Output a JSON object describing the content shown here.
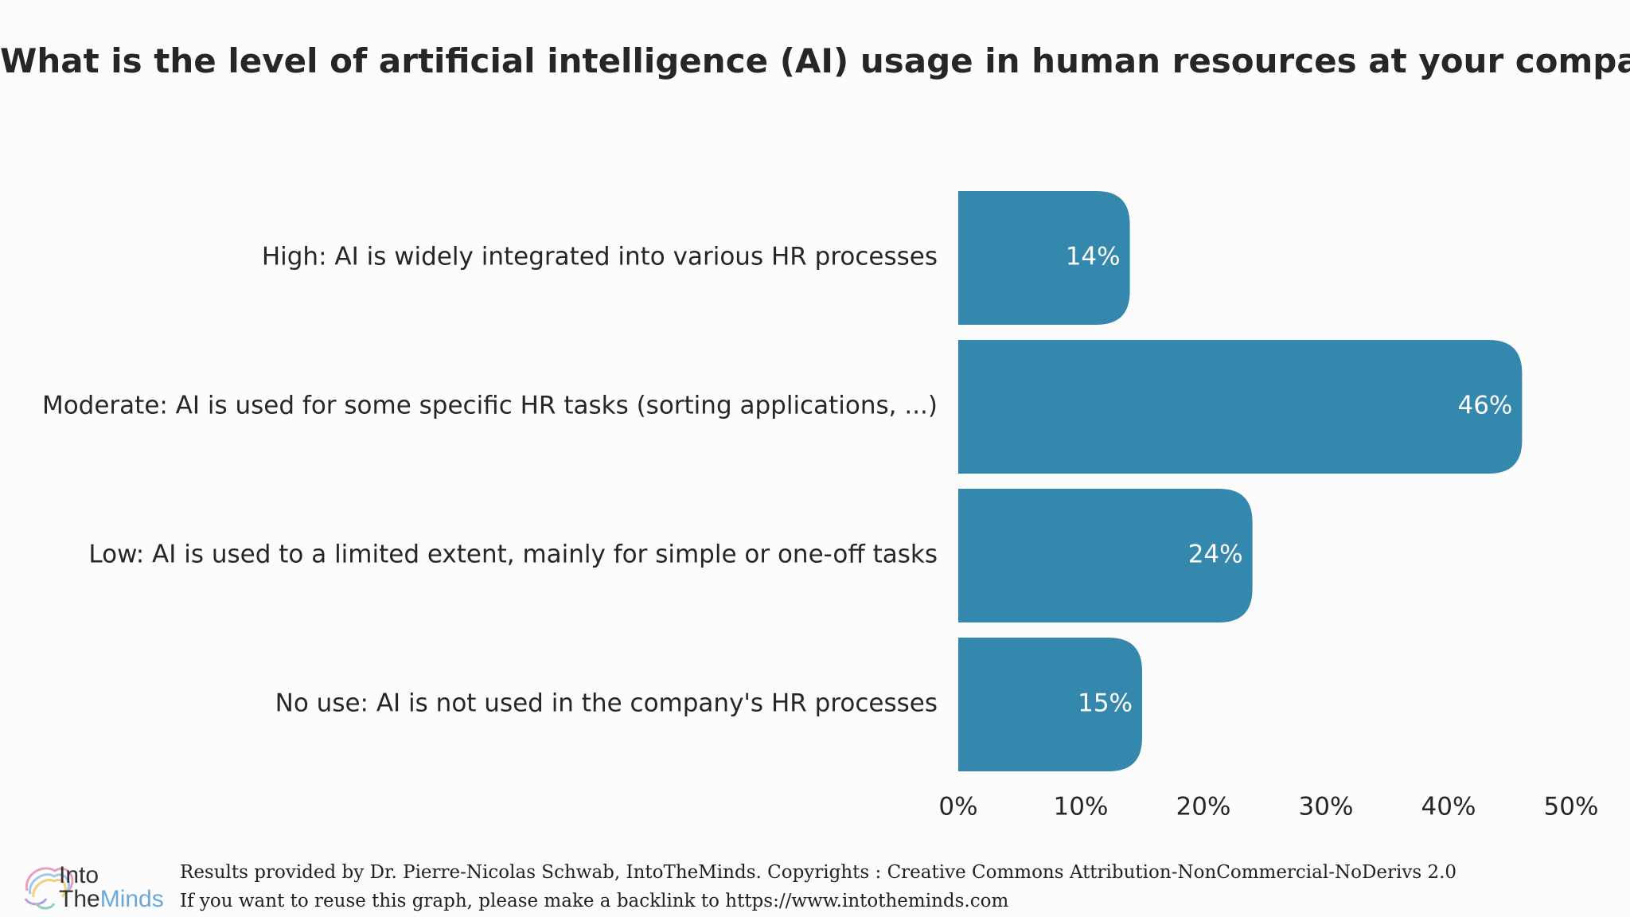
{
  "chart_data": {
    "type": "bar",
    "orientation": "horizontal",
    "title": "What is the level of artificial intelligence (AI) usage in human resources at your company?",
    "categories": [
      "High: AI is widely integrated into various HR processes",
      "Moderate: AI is used for some specific HR tasks (sorting applications, ...)",
      "Low: AI is used to a limited extent, mainly for simple or one-off tasks",
      "No use: AI is not used in the company's HR processes"
    ],
    "values": [
      14,
      46,
      24,
      15
    ],
    "value_labels": [
      "14%",
      "46%",
      "24%",
      "15%"
    ],
    "xlim": [
      0,
      50
    ],
    "x_ticks": [
      0,
      10,
      20,
      30,
      40,
      50
    ],
    "x_tick_labels": [
      "0%",
      "10%",
      "20%",
      "30%",
      "40%",
      "50%"
    ],
    "xlabel": "",
    "ylabel": "",
    "grid": false,
    "legend": "none",
    "bar_color": "#3588ad"
  },
  "footer": {
    "credit_line_1": "Results provided by Dr. Pierre-Nicolas Schwab, IntoTheMinds. Copyrights : Creative Commons Attribution-NonCommercial-NoDerivs 2.0",
    "credit_line_2": "If you want to reuse this graph, please make a backlink to https://www.intotheminds.com"
  },
  "logo": {
    "icon": "brain-swirl-icon",
    "text_into": "Into",
    "text_the": "The",
    "text_minds": "Minds"
  }
}
